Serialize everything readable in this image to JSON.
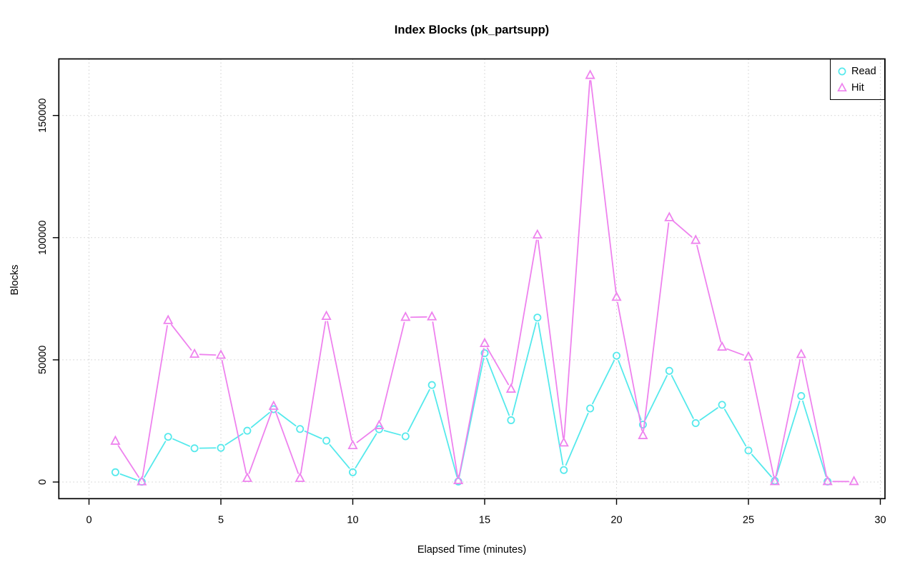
{
  "window": {
    "background": "#ffffff"
  },
  "chart_data": {
    "type": "line",
    "title": "Index Blocks (pk_partsupp)",
    "xlabel": "Elapsed Time (minutes)",
    "ylabel": "Blocks",
    "xlim": [
      0,
      30
    ],
    "ylim": [
      0,
      166400
    ],
    "x_ticks": [
      0,
      5,
      10,
      15,
      20,
      25,
      30
    ],
    "y_ticks": [
      0,
      50000,
      100000,
      150000
    ],
    "grid": true,
    "grid_color": "#cfcfcf",
    "legend_position": "topright",
    "x": [
      1,
      2,
      3,
      4,
      5,
      6,
      7,
      8,
      9,
      10,
      11,
      12,
      13,
      14,
      15,
      16,
      17,
      18,
      19,
      20,
      21,
      22,
      23,
      24,
      25,
      26,
      27,
      28,
      29
    ],
    "series": [
      {
        "name": "Read",
        "marker": "circle",
        "color": "#55e9ec",
        "values": [
          4000,
          100,
          18500,
          13800,
          14000,
          21000,
          29800,
          21700,
          16900,
          4000,
          21600,
          18700,
          39700,
          200,
          52700,
          25300,
          67300,
          4900,
          30100,
          51700,
          23500,
          45500,
          24100,
          31600,
          12900,
          500,
          35200,
          200,
          null
        ]
      },
      {
        "name": "Hit",
        "marker": "triangle",
        "color": "#ee82ee",
        "values": [
          16700,
          100,
          66100,
          52300,
          51900,
          1500,
          31000,
          1500,
          67800,
          14900,
          23100,
          67400,
          67600,
          600,
          56700,
          38000,
          101100,
          16000,
          166400,
          75600,
          19000,
          108200,
          98900,
          55200,
          51200,
          200,
          52200,
          200,
          200
        ]
      }
    ]
  }
}
